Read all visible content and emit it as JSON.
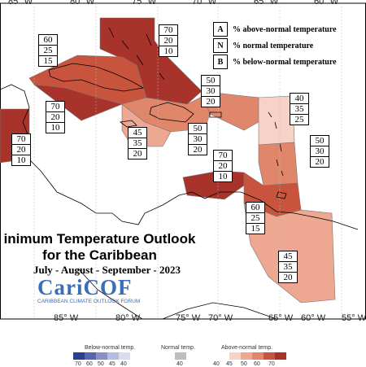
{
  "colors": {
    "sea": "#ffffff",
    "land_outline": "#000000",
    "above_70": "#a8332a",
    "above_60": "#c9543e",
    "above_50": "#e0866b",
    "above_45": "#eea791",
    "above_40": "#f6d3c6",
    "normal_40": "#bdbdbd",
    "below_70": "#2b3e8f",
    "below_60": "#5566b0",
    "below_50": "#8790c9",
    "below_45": "#b6bcdf",
    "below_40": "#dadcef"
  },
  "longitudes": [
    "85° W",
    "80° W",
    "75° W",
    "70° W",
    "65° W",
    "60° W",
    "55° W"
  ],
  "legend_key": [
    {
      "letter": "A",
      "text": "% above-normal temperature"
    },
    {
      "letter": "N",
      "text": "% normal temperature"
    },
    {
      "letter": "B",
      "text": "% below-normal temperature"
    }
  ],
  "boxes": [
    {
      "a": "60",
      "n": "25",
      "b": "15"
    },
    {
      "a": "70",
      "n": "20",
      "b": "10"
    },
    {
      "a": "70",
      "n": "20",
      "b": "10"
    },
    {
      "a": "70",
      "n": "20",
      "b": "10"
    },
    {
      "a": "45",
      "n": "35",
      "b": "20"
    },
    {
      "a": "50",
      "n": "30",
      "b": "20"
    },
    {
      "a": "50",
      "n": "30",
      "b": "20"
    },
    {
      "a": "40",
      "n": "35",
      "b": "25"
    },
    {
      "a": "70",
      "n": "20",
      "b": "10"
    },
    {
      "a": "50",
      "n": "30",
      "b": "20"
    },
    {
      "a": "60",
      "n": "25",
      "b": "15"
    },
    {
      "a": "45",
      "n": "35",
      "b": "20"
    }
  ],
  "title_line1": "inimum Temperature Outlook",
  "title_line2": "for the Caribbean",
  "season": "July - August - September - 2023",
  "logo_text": "CariCOF",
  "logo_subtext": "CARIBBEAN CLIMATE OUTLOOK FORUM",
  "scale": {
    "below_label": "Below-normal temp.",
    "normal_label": "Normal temp.",
    "above_label": "Above-normal temp.",
    "below_ticks": [
      "70",
      "60",
      "50",
      "45",
      "40"
    ],
    "normal_ticks": [
      "40"
    ],
    "above_ticks": [
      "40",
      "45",
      "50",
      "60",
      "70"
    ]
  }
}
